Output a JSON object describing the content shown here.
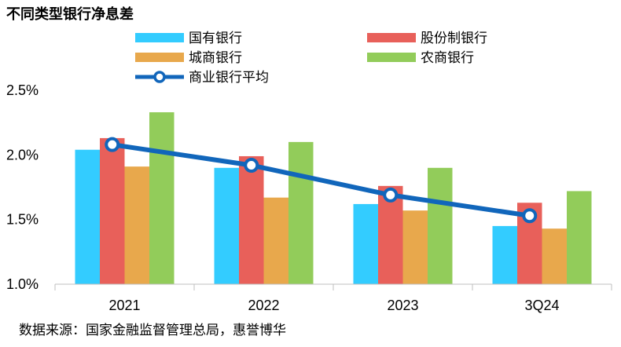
{
  "chart_data": {
    "type": "bar",
    "title": "不同类型银行净息差",
    "categories": [
      "2021",
      "2022",
      "2023",
      "3Q24"
    ],
    "ylim": [
      1.0,
      2.5
    ],
    "yticks": [
      "1.0%",
      "1.5%",
      "2.0%",
      "2.5%"
    ],
    "grid": false,
    "legend_placement": "top",
    "series": [
      {
        "name": "国有银行",
        "type": "bar",
        "color": "#33ccff",
        "values": [
          2.04,
          1.9,
          1.62,
          1.45
        ]
      },
      {
        "name": "股份制银行",
        "type": "bar",
        "color": "#e8605a",
        "values": [
          2.13,
          1.99,
          1.76,
          1.63
        ]
      },
      {
        "name": "城商银行",
        "type": "bar",
        "color": "#e8a84c",
        "values": [
          1.91,
          1.67,
          1.57,
          1.43
        ]
      },
      {
        "name": "农商银行",
        "type": "bar",
        "color": "#92cc5a",
        "values": [
          2.33,
          2.1,
          1.9,
          1.72
        ]
      },
      {
        "name": "商业银行平均",
        "type": "line",
        "color": "#1166bb",
        "values": [
          2.08,
          1.92,
          1.69,
          1.53
        ]
      }
    ]
  },
  "footer": {
    "source": "数据来源：国家金融监督管理总局，惠誉博华"
  }
}
